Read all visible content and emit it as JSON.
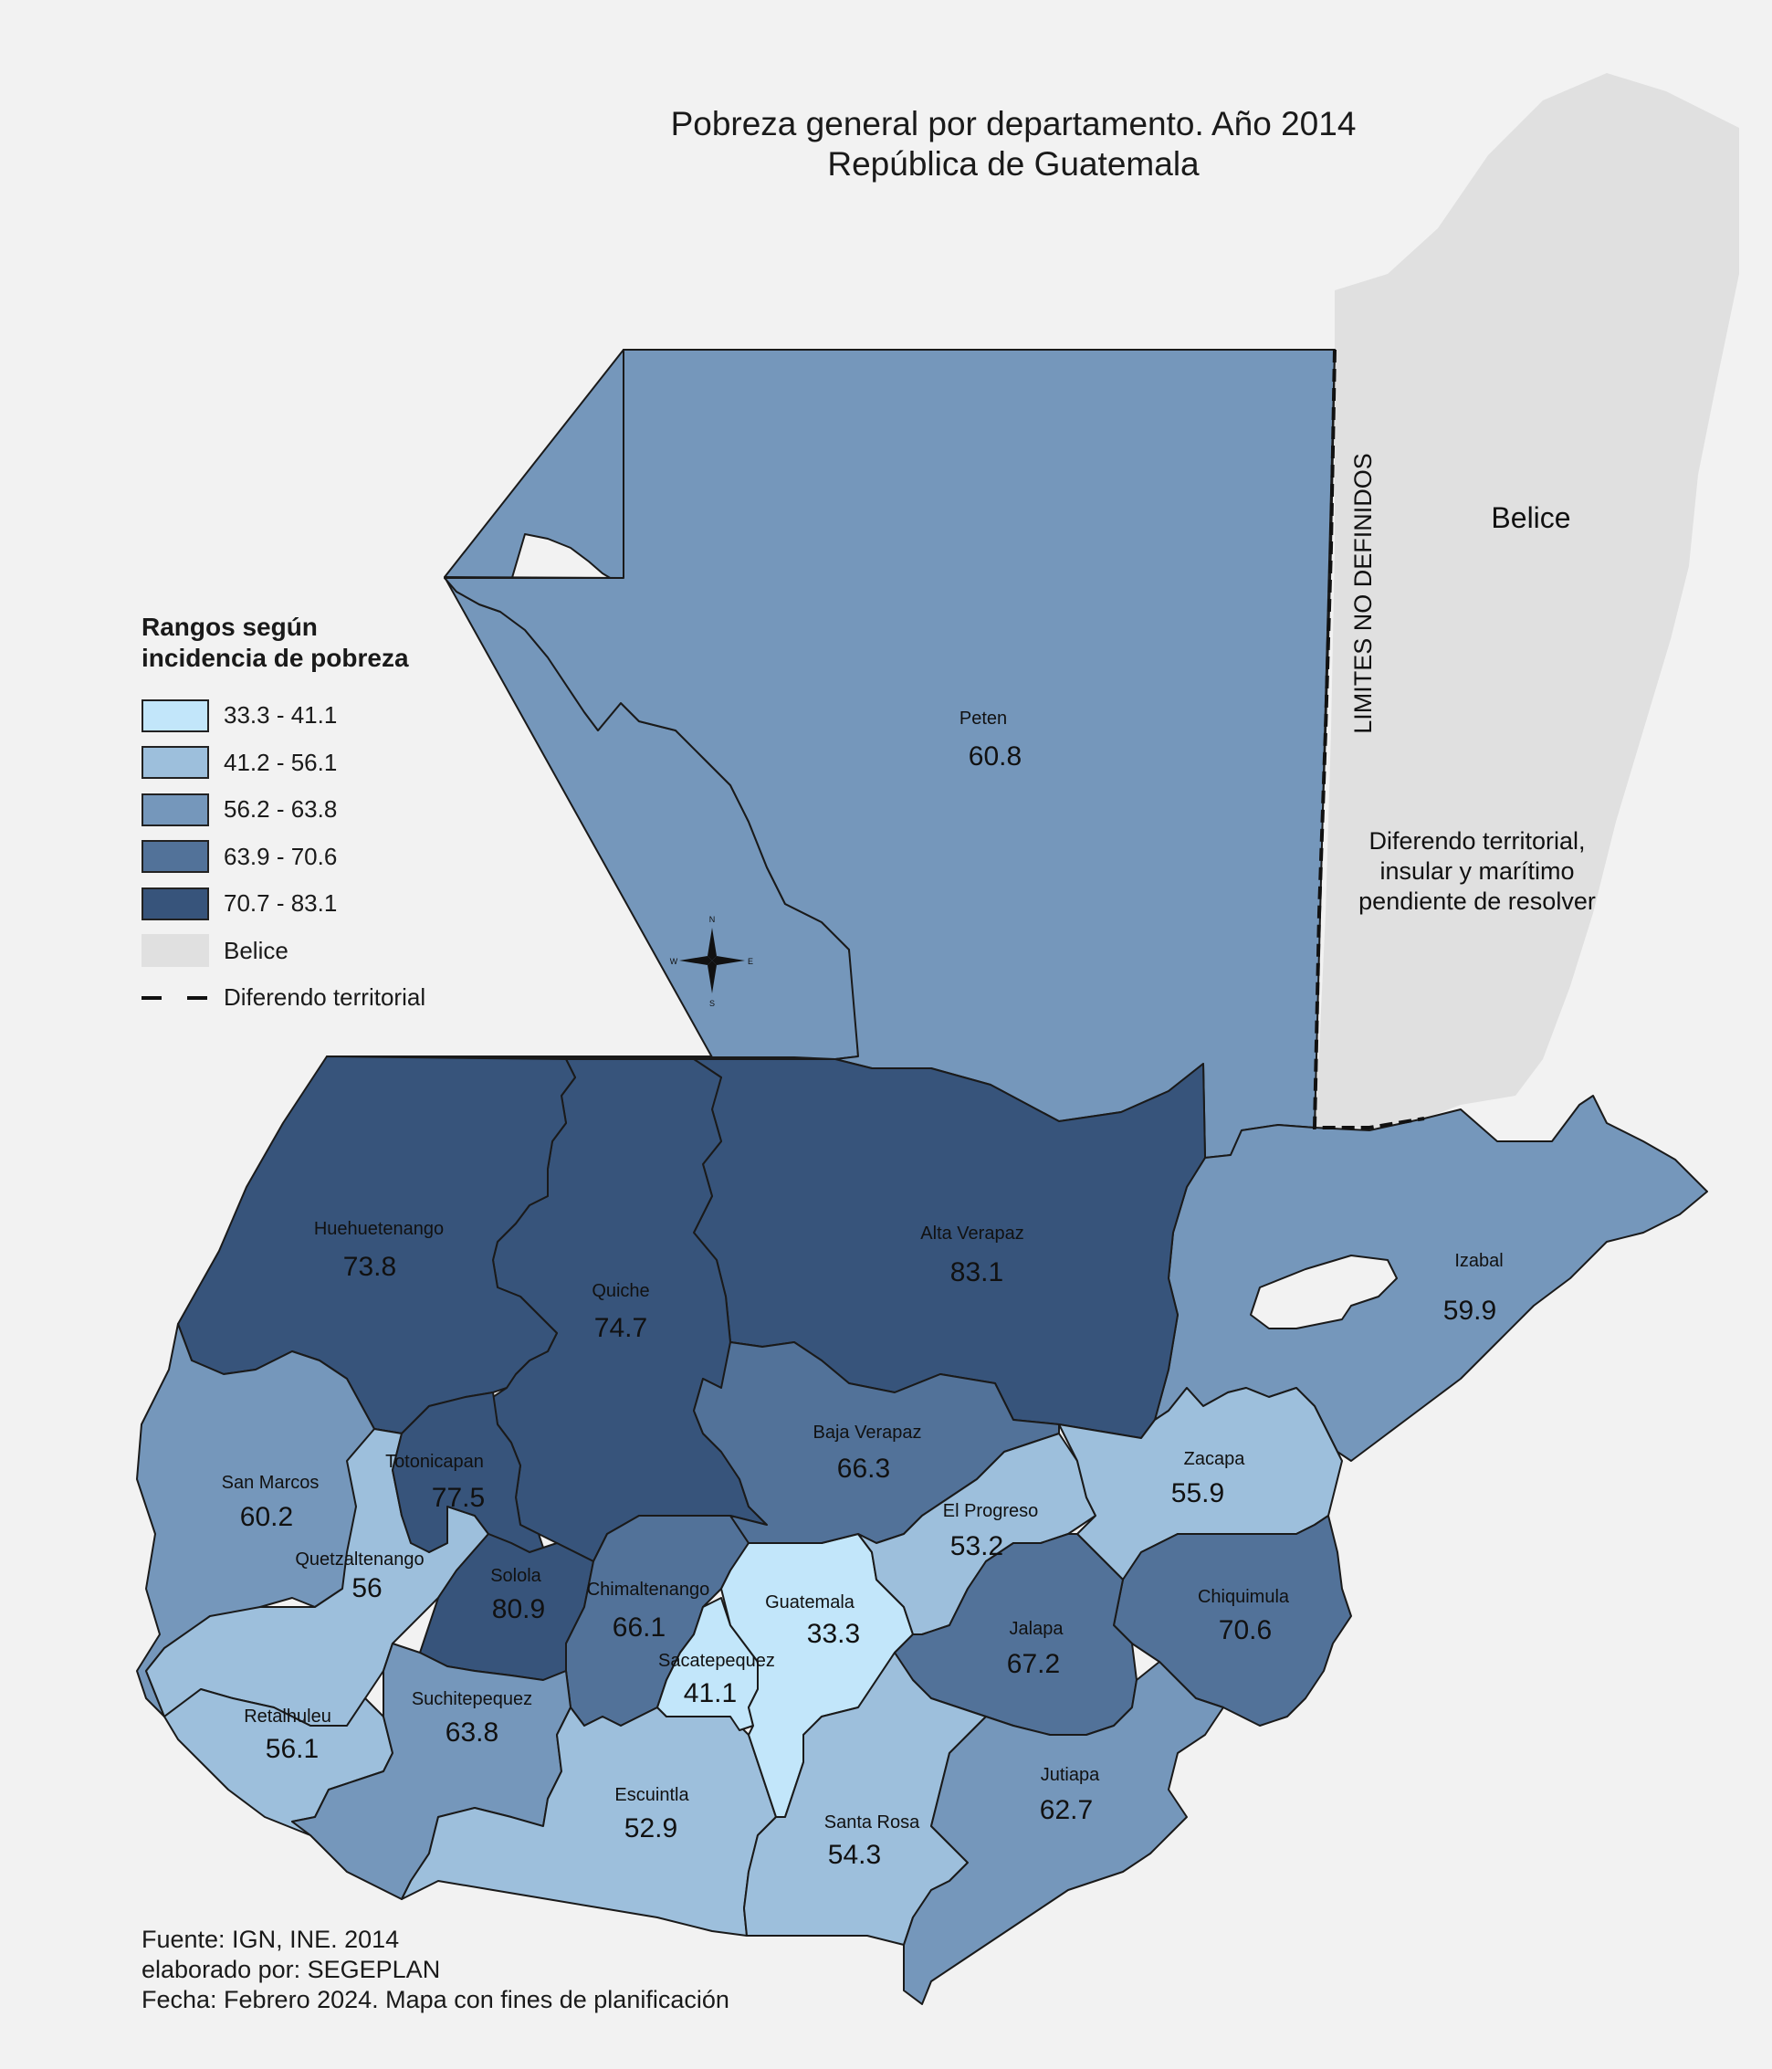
{
  "title": {
    "line1": "Pobreza general por departamento. Año 2014",
    "line2": "República de Guatemala"
  },
  "legend": {
    "title_line1": "Rangos según",
    "title_line2": "incidencia de pobreza",
    "classes": [
      {
        "label": "33.3 - 41.1",
        "color": "#c2e6fa"
      },
      {
        "label": "41.2 - 56.1",
        "color": "#9dbfdc"
      },
      {
        "label": "56.2 - 63.8",
        "color": "#7597bb"
      },
      {
        "label": "63.9 - 70.6",
        "color": "#527299"
      },
      {
        "label": "70.7 - 83.1",
        "color": "#37547b"
      }
    ],
    "belice_label": "Belice",
    "belice_color": "#e0e0e0",
    "dispute_label": "Diferendo territorial"
  },
  "map": {
    "belice_label": "Belice",
    "limits_label": "LIMITES NO DEFINIDOS",
    "dispute_note": [
      "Diferendo territorial,",
      "insular y marítimo",
      "pendiente de resolver"
    ],
    "compass_letters": [
      "N",
      "E",
      "S",
      "W"
    ],
    "departments": [
      {
        "name": "Peten",
        "value": "60.8"
      },
      {
        "name": "Huehuetenango",
        "value": "73.8"
      },
      {
        "name": "Quiche",
        "value": "74.7"
      },
      {
        "name": "Alta Verapaz",
        "value": "83.1"
      },
      {
        "name": "Izabal",
        "value": "59.9"
      },
      {
        "name": "San Marcos",
        "value": "60.2"
      },
      {
        "name": "Totonicapan",
        "value": "77.5"
      },
      {
        "name": "Baja Verapaz",
        "value": "66.3"
      },
      {
        "name": "Zacapa",
        "value": "55.9"
      },
      {
        "name": "El Progreso",
        "value": "53.2"
      },
      {
        "name": "Quetzaltenango",
        "value": "56"
      },
      {
        "name": "Solola",
        "value": "80.9"
      },
      {
        "name": "Chimaltenango",
        "value": "66.1"
      },
      {
        "name": "Guatemala",
        "value": "33.3"
      },
      {
        "name": "Chiquimula",
        "value": "70.6"
      },
      {
        "name": "Sacatepequez",
        "value": "41.1"
      },
      {
        "name": "Jalapa",
        "value": "67.2"
      },
      {
        "name": "Retalhuleu",
        "value": "56.1"
      },
      {
        "name": "Suchitepequez",
        "value": "63.8"
      },
      {
        "name": "Escuintla",
        "value": "52.9"
      },
      {
        "name": "Santa Rosa",
        "value": "54.3"
      },
      {
        "name": "Jutiapa",
        "value": "62.7"
      }
    ]
  },
  "footer": {
    "line1": "Fuente: IGN, INE. 2014",
    "line2": "elaborado por: SEGEPLAN",
    "line3": "Fecha: Febrero 2024. Mapa con fines de planificación"
  }
}
